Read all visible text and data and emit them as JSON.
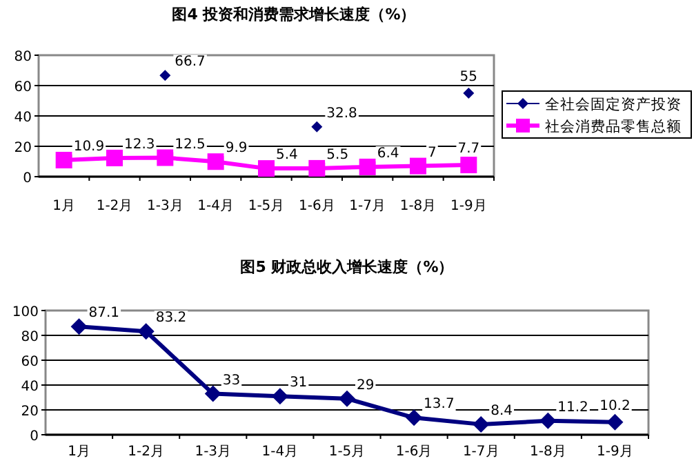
{
  "chart_data": [
    {
      "type": "line",
      "title": "图4 投资和消费需求增长速度（%）",
      "categories": [
        "1月",
        "1-2月",
        "1-3月",
        "1-4月",
        "1-5月",
        "1-6月",
        "1-7月",
        "1-8月",
        "1-9月"
      ],
      "series": [
        {
          "name": "全社会固定资产投资",
          "type": "scatter",
          "marker": "diamond",
          "color": "#000080",
          "values": [
            null,
            null,
            66.7,
            null,
            null,
            32.8,
            null,
            null,
            55
          ]
        },
        {
          "name": "社会消费品零售总额",
          "type": "line",
          "marker": "square",
          "color": "#ff00ff",
          "values": [
            10.9,
            12.3,
            12.5,
            9.9,
            5.4,
            5.5,
            6.4,
            7,
            7.7
          ]
        }
      ],
      "ylim": [
        0,
        80
      ],
      "yticks": [
        0,
        20,
        40,
        60,
        80
      ],
      "grid": "y",
      "legend": "right",
      "data_labels": true
    },
    {
      "type": "line",
      "title": "图5 财政总收入增长速度（%）",
      "categories": [
        "1月",
        "1-2月",
        "1-3月",
        "1-4月",
        "1-5月",
        "1-6月",
        "1-7月",
        "1-8月",
        "1-9月"
      ],
      "series": [
        {
          "color": "#000080",
          "values": [
            87.1,
            83.2,
            33,
            31,
            29,
            13.7,
            8.4,
            11.2,
            10.2
          ]
        }
      ],
      "marker": "diamond",
      "ylim": [
        0,
        100
      ],
      "yticks": [
        0,
        20,
        40,
        60,
        80,
        100
      ],
      "grid": "y",
      "data_labels": true
    }
  ]
}
